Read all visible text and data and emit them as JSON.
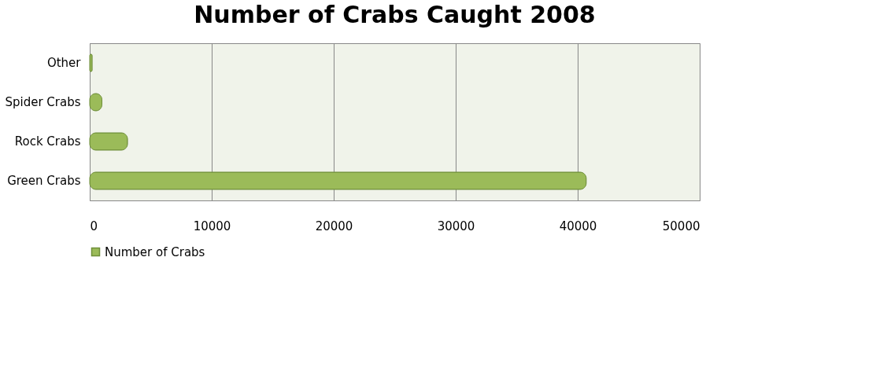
{
  "chart_data": {
    "type": "bar",
    "orientation": "horizontal",
    "title": "Number of Crabs Caught 2008",
    "categories": [
      "Other",
      "Spider Crabs",
      "Rock Crabs",
      "Green Crabs"
    ],
    "series": [
      {
        "name": "Number of Crabs",
        "color": "#9bbb59",
        "values": [
          200,
          1000,
          3100,
          40700
        ]
      }
    ],
    "xlim": [
      0,
      50000
    ],
    "xticks": [
      0,
      10000,
      20000,
      30000,
      40000,
      50000
    ],
    "grid": "x",
    "legend": "bottom"
  }
}
